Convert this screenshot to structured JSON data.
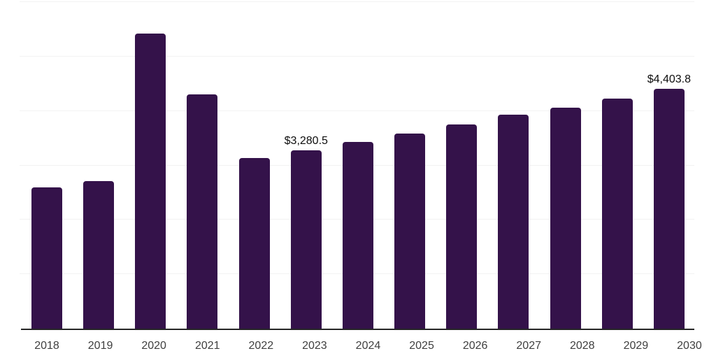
{
  "page": {
    "background_color": "#ffffff"
  },
  "chart_data": {
    "type": "bar",
    "title": "",
    "xlabel": "",
    "ylabel": "",
    "categories": [
      "2018",
      "2019",
      "2020",
      "2021",
      "2022",
      "2023",
      "2024",
      "2025",
      "2026",
      "2027",
      "2028",
      "2029",
      "2030"
    ],
    "values": [
      2595,
      2710,
      5420,
      4310,
      3130,
      3280.5,
      3425,
      3590,
      3755,
      3935,
      4065,
      4230,
      4403.8
    ],
    "bar_labels": [
      "",
      "",
      "",
      "",
      "",
      "$3,280.5",
      "",
      "",
      "",
      "",
      "",
      "",
      "$4,403.8"
    ],
    "ylim": [
      0,
      6000
    ],
    "gridline_step": 1000,
    "grid": true,
    "legend": false,
    "y_tick_labels_visible": false,
    "bar_color": "#34124a",
    "axis_line_color": "#262626",
    "gridline_color": "#f2f2f2",
    "tick_label_color": "#3f3f3f",
    "data_label_color": "#0d0d0d"
  }
}
